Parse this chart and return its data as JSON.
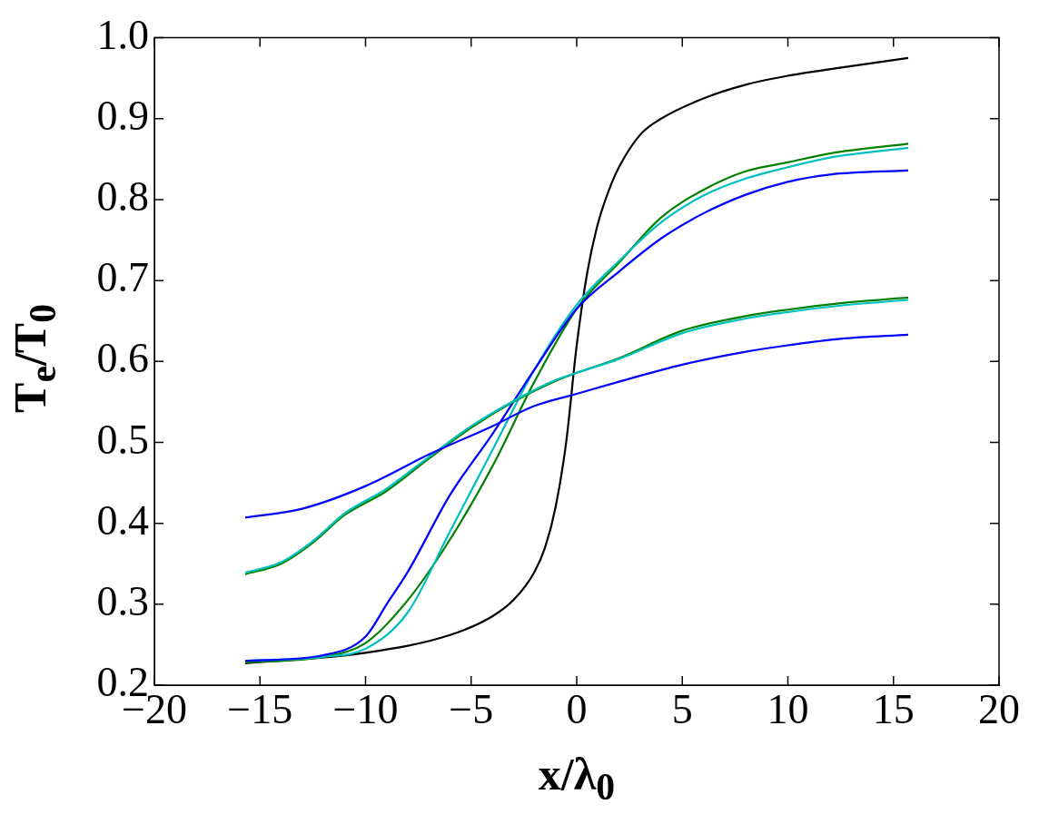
{
  "chart_data": {
    "type": "line",
    "xlabel": "x/λ$_{0}$",
    "ylabel": "T$_{e}$/T$_{0}$",
    "xlim": [
      -20,
      20
    ],
    "ylim": [
      0.2,
      1.0
    ],
    "xticks": [
      {
        "value": -20,
        "label": "−20"
      },
      {
        "value": -15,
        "label": "−15"
      },
      {
        "value": -10,
        "label": "−10"
      },
      {
        "value": -5,
        "label": "−5"
      },
      0,
      5,
      10,
      15,
      20
    ],
    "yticks": [
      0.2,
      0.3,
      0.4,
      0.5,
      0.6,
      0.7,
      0.8,
      0.9,
      {
        "value": 1,
        "label": "1.0"
      }
    ],
    "grid": false,
    "legend": false,
    "marker": "none",
    "line_style": "solid",
    "series": [
      {
        "color": "#000000",
        "x": [
          -15.7,
          -10,
          -6,
          -4,
          -3,
          -2,
          -1.5,
          -1,
          -0.5,
          0,
          0.5,
          1,
          1.5,
          2,
          3,
          4,
          6,
          8,
          10,
          13,
          15.7
        ],
        "values": [
          0.227,
          0.24,
          0.262,
          0.285,
          0.305,
          0.34,
          0.37,
          0.42,
          0.5,
          0.62,
          0.71,
          0.77,
          0.81,
          0.84,
          0.88,
          0.9,
          0.925,
          0.942,
          0.953,
          0.965,
          0.975
        ]
      },
      {
        "color": "#008000",
        "x": [
          -15.7,
          -12,
          -10,
          -8,
          -6,
          -4,
          -2,
          0,
          2,
          4,
          6,
          8,
          10,
          12,
          15.7
        ],
        "values": [
          0.228,
          0.235,
          0.252,
          0.305,
          0.38,
          0.47,
          0.575,
          0.665,
          0.722,
          0.778,
          0.812,
          0.835,
          0.846,
          0.857,
          0.869
        ]
      },
      {
        "color": "#00bfbf",
        "x": [
          -15.7,
          -12,
          -10,
          -8,
          -6,
          -4,
          -2,
          0,
          2,
          4,
          6,
          8,
          10,
          12,
          15.7
        ],
        "values": [
          0.23,
          0.235,
          0.245,
          0.29,
          0.39,
          0.49,
          0.59,
          0.67,
          0.724,
          0.772,
          0.805,
          0.826,
          0.84,
          0.852,
          0.864
        ]
      },
      {
        "color": "#0000ff",
        "x": [
          -15.7,
          -12,
          -10,
          -9,
          -8,
          -6,
          -4,
          -2,
          0,
          2,
          4,
          6,
          8,
          10,
          12,
          15.7
        ],
        "values": [
          0.23,
          0.237,
          0.26,
          0.3,
          0.34,
          0.435,
          0.51,
          0.59,
          0.665,
          0.711,
          0.752,
          0.783,
          0.806,
          0.822,
          0.831,
          0.836
        ]
      },
      {
        "color": "#008000",
        "x": [
          -15.7,
          -14,
          -12.5,
          -11,
          -9,
          -7,
          -5,
          -3,
          -1,
          0,
          2,
          5,
          8,
          10,
          12.5,
          15.7
        ],
        "values": [
          0.337,
          0.35,
          0.376,
          0.41,
          0.44,
          0.48,
          0.518,
          0.55,
          0.576,
          0.586,
          0.604,
          0.638,
          0.656,
          0.664,
          0.672,
          0.679
        ]
      },
      {
        "color": "#00bfbf",
        "x": [
          -15.7,
          -14,
          -12.5,
          -11,
          -9,
          -7,
          -5,
          -3,
          -1,
          0,
          2,
          5,
          8,
          10,
          12.5,
          15.7
        ],
        "values": [
          0.339,
          0.352,
          0.378,
          0.412,
          0.443,
          0.482,
          0.52,
          0.551,
          0.577,
          0.586,
          0.603,
          0.635,
          0.653,
          0.661,
          0.669,
          0.676
        ]
      },
      {
        "color": "#0000ff",
        "x": [
          -15.7,
          -13,
          -10,
          -7,
          -4,
          -2,
          0,
          2,
          5,
          8,
          10,
          12.5,
          15.7
        ],
        "values": [
          0.407,
          0.418,
          0.446,
          0.485,
          0.52,
          0.545,
          0.56,
          0.575,
          0.596,
          0.612,
          0.62,
          0.628,
          0.633
        ]
      }
    ]
  }
}
